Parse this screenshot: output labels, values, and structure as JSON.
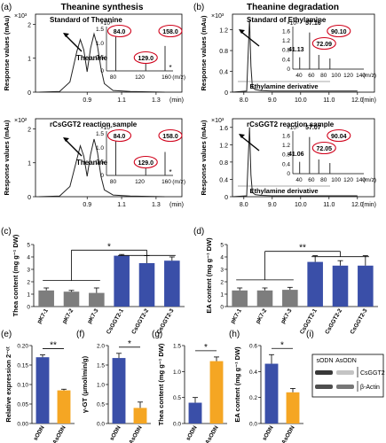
{
  "panel_letters": [
    "(a)",
    "(b)",
    "(c)",
    "(d)",
    "(e)",
    "(f)",
    "(g)",
    "(h)",
    "(i)"
  ],
  "titles": {
    "synthesis": "Theanine synthesis",
    "degradation": "Theanine degradation"
  },
  "colors": {
    "blue": "#3a4fa8",
    "gray": "#7d7d7d",
    "orange": "#f5a623",
    "ring": "#d0021b",
    "star": "#3a4fa8"
  },
  "chart_data": [
    {
      "id": "a1",
      "type": "line",
      "subtitle": "Standard of Theanine",
      "ylabel": "Response values (mAu)",
      "xlabel": "(min)",
      "y_exponent": "×10³",
      "xticks": [
        "0.9",
        "1.1",
        "1.3"
      ],
      "yticks": [
        "2",
        "1",
        "0"
      ],
      "ylim": [
        0,
        2.3
      ],
      "peak_label": "Theanine",
      "series": [
        {
          "x": [
            0.62,
            0.74,
            0.8,
            0.84,
            0.86,
            0.88,
            0.9,
            0.92,
            0.94,
            0.96,
            0.98,
            1.0,
            1.05,
            1.15,
            1.25,
            1.35
          ],
          "y": [
            0,
            0.02,
            0.3,
            1.2,
            1.55,
            1.25,
            0.6,
            1.3,
            1.72,
            1.35,
            0.7,
            0.25,
            0.05,
            0.02,
            0.01,
            0
          ]
        }
      ],
      "inset": {
        "exponent": "×10⁴",
        "yticks": [
          "1.5",
          "1.0",
          "0.5",
          "0"
        ],
        "xticks": [
          "80",
          "120",
          "160"
        ],
        "unit": "(m/z)",
        "labels": [
          "84.0",
          "129.0",
          "158.0"
        ],
        "peaks": [
          {
            "mz": 84.0,
            "h": 1.3
          },
          {
            "mz": 129.0,
            "h": 0.4
          },
          {
            "mz": 158.0,
            "h": 0.9
          }
        ]
      }
    },
    {
      "id": "a2",
      "type": "line",
      "subtitle": "rCsGGT2 reaction sample",
      "ylabel": "Response values (mAu)",
      "xlabel": "(min)",
      "y_exponent": "×10²",
      "xticks": [
        "0.9",
        "1.1",
        "1.3"
      ],
      "yticks": [
        "2",
        "1",
        "0"
      ],
      "ylim": [
        0,
        2.3
      ],
      "peak_label": "Theanine",
      "series": [
        {
          "x": [
            0.62,
            0.74,
            0.8,
            0.84,
            0.86,
            0.88,
            0.9,
            0.92,
            0.94,
            0.96,
            0.98,
            1.0,
            1.05,
            1.15,
            1.25,
            1.35
          ],
          "y": [
            0,
            0.02,
            0.3,
            1.1,
            1.5,
            1.2,
            0.6,
            1.25,
            1.7,
            1.3,
            0.6,
            0.2,
            0.05,
            0.02,
            0.01,
            0
          ]
        }
      ],
      "inset": {
        "exponent": "×10⁴",
        "yticks": [
          "1.5",
          "1.0",
          "0.5",
          "0"
        ],
        "xticks": [
          "80",
          "120",
          "160"
        ],
        "unit": "(m/z)",
        "labels": [
          "84.0",
          "129.0",
          "158.0"
        ],
        "peaks": [
          {
            "mz": 84.0,
            "h": 1.25
          },
          {
            "mz": 129.0,
            "h": 0.4
          },
          {
            "mz": 158.0,
            "h": 0.85
          }
        ]
      }
    },
    {
      "id": "b1",
      "type": "line",
      "subtitle": "Standard of Ethylamine",
      "ylabel": "Response values (mAu)",
      "xlabel": "(min)",
      "y_exponent": "×10³",
      "xticks": [
        "8.0",
        "9.0",
        "10.0",
        "11.0",
        "12.0"
      ],
      "yticks": [
        "1.2",
        "0.8",
        "0.4",
        "0"
      ],
      "ylim": [
        0,
        1.5
      ],
      "peak_label": "Ethylamine derivative",
      "series": [
        {
          "x": [
            7.6,
            8.1,
            8.2,
            8.25,
            8.3,
            8.4,
            8.6,
            9.0,
            9.5,
            10.0,
            10.5,
            11.0,
            11.5,
            12.0
          ],
          "y": [
            0,
            0.02,
            1.4,
            0.5,
            0.1,
            0.05,
            0.03,
            0.02,
            0.02,
            0.02,
            0.02,
            0.02,
            0.02,
            0.02
          ]
        }
      ],
      "inset": {
        "exponent": "×10⁶",
        "yticks": [
          "1.6",
          "1.2",
          "0.8",
          "0.4",
          "0"
        ],
        "xticks": [
          "40",
          "60",
          "80",
          "100",
          "120",
          "140"
        ],
        "unit": "(m/z)",
        "labels": [
          "41.13",
          "57.16",
          "72.09",
          "90.10"
        ],
        "peaks": [
          {
            "mz": 41.13,
            "h": 0.5
          },
          {
            "mz": 57.16,
            "h": 1.55
          },
          {
            "mz": 72.09,
            "h": 0.6
          },
          {
            "mz": 90.1,
            "h": 0.45
          }
        ]
      }
    },
    {
      "id": "b2",
      "type": "line",
      "subtitle": "rCsGGT2 reaction sample",
      "ylabel": "Response values (mAu)",
      "xlabel": "(min)",
      "y_exponent": "×10³",
      "xticks": [
        "8.0",
        "9.0",
        "10.0",
        "11.0",
        "12.0"
      ],
      "yticks": [
        "1.6",
        "1.2",
        "0.8",
        "0.4",
        "0"
      ],
      "ylim": [
        0,
        1.8
      ],
      "peak_label": "Ethylamine derivative",
      "series": [
        {
          "x": [
            7.6,
            8.1,
            8.2,
            8.25,
            8.3,
            8.4,
            8.6,
            9.0,
            9.5,
            10.0,
            10.5,
            11.0,
            11.5,
            12.0
          ],
          "y": [
            0,
            0.02,
            1.6,
            0.5,
            0.1,
            0.05,
            0.03,
            0.02,
            0.02,
            0.02,
            0.02,
            0.02,
            0.02,
            0.02
          ]
        }
      ],
      "inset": {
        "exponent": "×10⁶",
        "yticks": [
          "1.6",
          "1.2",
          "0.8",
          "0.4",
          "0"
        ],
        "xticks": [
          "40",
          "60",
          "80",
          "100",
          "120",
          "140"
        ],
        "unit": "(m/z)",
        "labels": [
          "41.06",
          "57.07",
          "72.05",
          "90.04"
        ],
        "peaks": [
          {
            "mz": 41.06,
            "h": 0.5
          },
          {
            "mz": 57.07,
            "h": 1.55
          },
          {
            "mz": 72.05,
            "h": 0.6
          },
          {
            "mz": 90.04,
            "h": 0.45
          }
        ]
      }
    },
    {
      "id": "c",
      "type": "bar",
      "ylabel": "Thea content (mg g⁻¹ DW)",
      "ylim": [
        0,
        5
      ],
      "yticks": [
        "0",
        "1",
        "2",
        "3",
        "4",
        "5"
      ],
      "categories": [
        "pK7-1",
        "pK7-2",
        "pK7-3",
        "CsGGT2-1",
        "CsGGT2-2",
        "CsGGT2-3"
      ],
      "values": [
        1.3,
        1.2,
        1.1,
        4.1,
        3.5,
        3.7
      ],
      "errors": [
        0.2,
        0.1,
        0.4,
        0.1,
        0.6,
        0.3
      ],
      "bar_colors": [
        "gray",
        "gray",
        "gray",
        "blue",
        "blue",
        "blue"
      ],
      "significance": "*"
    },
    {
      "id": "d",
      "type": "bar",
      "ylabel": "EA content (mg g⁻¹ DW)",
      "ylim": [
        0,
        5
      ],
      "yticks": [
        "0",
        "1",
        "2",
        "3",
        "4",
        "5"
      ],
      "categories": [
        "pK7-1",
        "pK7-2",
        "pK7-3",
        "CsGGT2-1",
        "CsGGT2-2",
        "CsGGT2-3"
      ],
      "values": [
        1.3,
        1.3,
        1.35,
        3.6,
        3.3,
        3.3
      ],
      "errors": [
        0.2,
        0.2,
        0.2,
        0.5,
        0.4,
        0.8
      ],
      "bar_colors": [
        "gray",
        "gray",
        "gray",
        "blue",
        "blue",
        "blue"
      ],
      "significance": "**"
    },
    {
      "id": "e",
      "type": "bar",
      "ylabel": "Relative expression 2⁻ᶜᵗ",
      "ylim": [
        0,
        0.2
      ],
      "yticks": [
        "0.00",
        "0.05",
        "0.10",
        "0.15",
        "0.20"
      ],
      "categories": [
        "sODN",
        "AsODN"
      ],
      "values": [
        0.17,
        0.085
      ],
      "errors": [
        0.006,
        0.003
      ],
      "bar_colors": [
        "blue",
        "orange"
      ],
      "significance": "**"
    },
    {
      "id": "f",
      "type": "bar",
      "ylabel": "γ-GT (μmol/min/g)",
      "ylim": [
        0,
        2
      ],
      "yticks": [
        "0.0",
        "0.5",
        "1.0",
        "1.5",
        "2.0"
      ],
      "categories": [
        "sODN",
        "AsODN"
      ],
      "values": [
        1.68,
        0.4
      ],
      "errors": [
        0.12,
        0.15
      ],
      "bar_colors": [
        "blue",
        "orange"
      ],
      "significance": "*"
    },
    {
      "id": "g",
      "type": "bar",
      "ylabel": "Thea content (mg g⁻¹ DW)",
      "ylim": [
        0,
        1.5
      ],
      "yticks": [
        "0.0",
        "0.5",
        "1.0",
        "1.5"
      ],
      "categories": [
        "sODN",
        "AsODN"
      ],
      "values": [
        0.4,
        1.2
      ],
      "errors": [
        0.1,
        0.08
      ],
      "bar_colors": [
        "blue",
        "orange"
      ],
      "significance": "*"
    },
    {
      "id": "h",
      "type": "bar",
      "ylabel": "EA content (mg g⁻¹ DW)",
      "ylim": [
        0,
        0.6
      ],
      "yticks": [
        "0.0",
        "0.2",
        "0.4",
        "0.6"
      ],
      "categories": [
        "sODN",
        "AsODN"
      ],
      "values": [
        0.46,
        0.24
      ],
      "errors": [
        0.07,
        0.03
      ],
      "bar_colors": [
        "blue",
        "orange"
      ],
      "significance": "*"
    }
  ],
  "blot": {
    "lanes": [
      "sODN",
      "AsODN"
    ],
    "bands": [
      "CsGGT2",
      "β-Actin"
    ]
  }
}
